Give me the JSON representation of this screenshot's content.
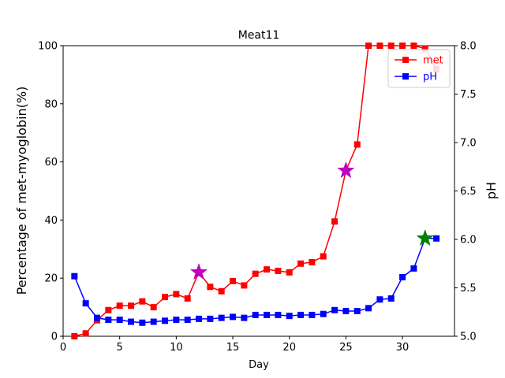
{
  "chart_data": {
    "type": "line",
    "title": "Meat11",
    "xlabel": "Day",
    "ylabel": "Percentage of met-myoglobin(%)",
    "y2label": "pH",
    "xlim": [
      0,
      34.6
    ],
    "ylim": [
      0,
      100
    ],
    "y2lim": [
      5.0,
      8.0
    ],
    "xticks": [
      "0",
      "5",
      "10",
      "15",
      "20",
      "25",
      "30"
    ],
    "yticks": [
      "0",
      "20",
      "40",
      "60",
      "80",
      "100"
    ],
    "y2ticks": [
      "5.0",
      "5.5",
      "6.0",
      "6.5",
      "7.0",
      "7.5",
      "8.0"
    ],
    "legend_position": "upper-right",
    "grid": false,
    "series": [
      {
        "name": "met",
        "axis": "left",
        "color": "#ff0000",
        "marker": "square",
        "x": [
          1,
          2,
          3,
          4,
          5,
          6,
          7,
          8,
          9,
          10,
          11,
          12,
          13,
          14,
          15,
          16,
          17,
          18,
          19,
          20,
          21,
          22,
          23,
          24,
          25,
          26,
          27,
          28,
          29,
          30,
          31,
          32,
          33
        ],
        "y": [
          0,
          1,
          5.5,
          9,
          10.5,
          10.5,
          12,
          10,
          13.5,
          14.5,
          13,
          22,
          17,
          15.5,
          19,
          17.5,
          21.5,
          23,
          22.5,
          22,
          25,
          25.5,
          27.5,
          39.5,
          57,
          66,
          100,
          100,
          100,
          100,
          100,
          99,
          92
        ]
      },
      {
        "name": "pH",
        "axis": "right",
        "color": "#0000ff",
        "marker": "square",
        "x": [
          1,
          2,
          3,
          4,
          5,
          6,
          7,
          8,
          9,
          10,
          11,
          12,
          13,
          14,
          15,
          16,
          17,
          18,
          19,
          20,
          21,
          22,
          23,
          24,
          25,
          26,
          27,
          28,
          29,
          30,
          31,
          32,
          33
        ],
        "y": [
          5.62,
          5.34,
          5.19,
          5.17,
          5.17,
          5.15,
          5.14,
          5.15,
          5.16,
          5.17,
          5.17,
          5.18,
          5.18,
          5.19,
          5.2,
          5.19,
          5.22,
          5.22,
          5.22,
          5.21,
          5.22,
          5.22,
          5.23,
          5.27,
          5.26,
          5.26,
          5.29,
          5.38,
          5.39,
          5.61,
          5.7,
          6.01,
          6.01
        ]
      }
    ],
    "highlights": [
      {
        "series": "met",
        "x": 12,
        "y": 22,
        "color": "#bf00bf",
        "marker": "star"
      },
      {
        "series": "met",
        "x": 25,
        "y": 57,
        "color": "#bf00bf",
        "marker": "star"
      },
      {
        "series": "pH",
        "x": 32,
        "y": 6.01,
        "color": "#008000",
        "marker": "star"
      }
    ]
  }
}
